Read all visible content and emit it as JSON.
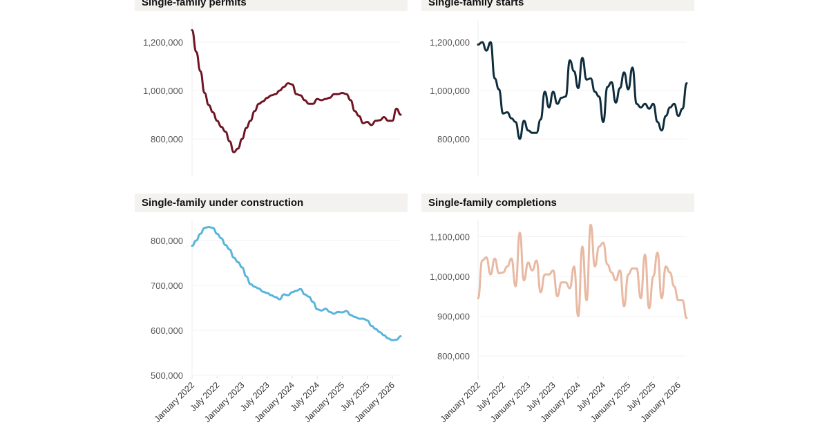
{
  "chart_data": [
    {
      "type": "line",
      "title": "Single-family permits",
      "color": "#6e1423",
      "x_start": "January 2022",
      "x_end": "March 2026",
      "x_frequency": "monthly",
      "yticks": [
        800000,
        1000000,
        1200000
      ],
      "ytick_labels": [
        "800,000",
        "1,000,000",
        "1,200,000"
      ],
      "ylim": [
        650000,
        1290000
      ],
      "grid": true,
      "values": [
        1250000,
        1160000,
        1080000,
        990000,
        940000,
        910000,
        875000,
        850000,
        830000,
        790000,
        745000,
        760000,
        800000,
        845000,
        875000,
        915000,
        945000,
        955000,
        970000,
        980000,
        985000,
        1000000,
        1015000,
        1030000,
        1025000,
        985000,
        980000,
        960000,
        945000,
        945000,
        965000,
        960000,
        965000,
        970000,
        985000,
        985000,
        990000,
        985000,
        960000,
        915000,
        895000,
        865000,
        870000,
        857000,
        875000,
        877000,
        890000,
        875000,
        875000,
        925000,
        900000
      ]
    },
    {
      "type": "line",
      "title": "Single-family starts",
      "color": "#0f2d3c",
      "x_start": "January 2022",
      "x_end": "March 2026",
      "x_frequency": "monthly",
      "yticks": [
        800000,
        1000000,
        1200000
      ],
      "ytick_labels": [
        "800,000",
        "1,000,000",
        "1,200,000"
      ],
      "ylim": [
        650000,
        1290000
      ],
      "grid": true,
      "values": [
        1190000,
        1200000,
        1165000,
        1200000,
        1050000,
        1005000,
        905000,
        910000,
        885000,
        870000,
        800000,
        875000,
        835000,
        825000,
        825000,
        880000,
        995000,
        930000,
        995000,
        945000,
        970000,
        975000,
        1125000,
        1080000,
        1010000,
        1135000,
        1045000,
        1050000,
        995000,
        975000,
        870000,
        1015000,
        1035000,
        950000,
        1010000,
        1075000,
        1005000,
        1095000,
        945000,
        930000,
        945000,
        925000,
        945000,
        870000,
        835000,
        895000,
        930000,
        945000,
        895000,
        925000,
        1030000
      ]
    },
    {
      "type": "line",
      "title": "Single-family under construction",
      "color": "#5ab4d9",
      "x_start": "January 2022",
      "x_end": "March 2026",
      "x_frequency": "monthly",
      "yticks": [
        500000,
        600000,
        700000,
        800000
      ],
      "ytick_labels": [
        "500,000",
        "600,000",
        "700,000",
        "800,000"
      ],
      "ylim": [
        495000,
        850000
      ],
      "grid": true,
      "xtick_labels": [
        "January 2022",
        "July 2022",
        "January 2023",
        "July 2023",
        "January 2024",
        "July 2024",
        "January 2025",
        "July 2025",
        "January 2026"
      ],
      "values": [
        788000,
        800000,
        815000,
        828000,
        830000,
        828000,
        815000,
        805000,
        790000,
        780000,
        762000,
        752000,
        740000,
        720000,
        703000,
        697000,
        693000,
        686000,
        683000,
        678000,
        674000,
        669000,
        680000,
        678000,
        685000,
        688000,
        692000,
        680000,
        675000,
        663000,
        647000,
        644000,
        648000,
        641000,
        637000,
        641000,
        640000,
        643000,
        634000,
        630000,
        626000,
        626000,
        622000,
        610000,
        603000,
        596000,
        589000,
        582000,
        578000,
        579000,
        587000
      ]
    },
    {
      "type": "line",
      "title": "Single-family completions",
      "color": "#e8b9a3",
      "x_start": "January 2022",
      "x_end": "March 2026",
      "x_frequency": "monthly",
      "yticks": [
        800000,
        900000,
        1000000,
        1100000
      ],
      "ytick_labels": [
        "800,000",
        "900,000",
        "1,000,000",
        "1,100,000"
      ],
      "ylim": [
        750000,
        1140000
      ],
      "grid": true,
      "xtick_labels": [
        "January 2022",
        "July 2022",
        "January 2023",
        "July 2023",
        "January 2024",
        "July 2024",
        "January 2025",
        "July 2025",
        "January 2026"
      ],
      "values": [
        945000,
        1040000,
        1048000,
        1005000,
        1045000,
        1008000,
        1010000,
        1025000,
        1045000,
        975000,
        1110000,
        990000,
        1035000,
        1015000,
        1040000,
        960000,
        1005000,
        1005000,
        1015000,
        950000,
        985000,
        985000,
        970000,
        1025000,
        900000,
        1075000,
        940000,
        1130000,
        1025000,
        1075000,
        1085000,
        1030000,
        1010000,
        990000,
        1015000,
        925000,
        1005000,
        1020000,
        1020000,
        945000,
        1055000,
        920000,
        1000000,
        1060000,
        945000,
        1025000,
        1010000,
        975000,
        940000,
        940000,
        895000
      ]
    }
  ]
}
